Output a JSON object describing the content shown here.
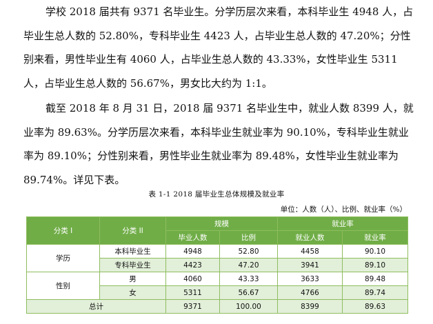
{
  "paragraphs": [
    "学校 2018 届共有 9371 名毕业生。分学历层次来看，本科毕业生 4948 人，占毕业生总人数的 52.80%，专科毕业生 4423 人，占毕业生总人数的 47.20%；分性别来看，男性毕业生有 4060 人，占毕业生总人数的 43.33%，女性毕业生 5311 人，占毕业生总人数的 56.67%，男女比大约为 1:1。",
    "截至 2018 年 8 月 31 日，2018 届 9371 名毕业生中，就业人数 8399 人，就业率为 89.63%。分学历层次来看，本科毕业生就业率为 90.10%，专科毕业生就业率为 89.10%；分性别来看，男性毕业生就业率为 89.48%，女性毕业生就业率为 89.74%。详见下表。"
  ],
  "table": {
    "caption": "表 1-1   2018 届毕业生总体规模及就业率",
    "unit": "单位：人数（人）、比例、就业率（%）",
    "headers": {
      "cat1": "分类 I",
      "cat2": "分类 II",
      "scale": "规模",
      "employment": "就业率",
      "graduates": "毕业人数",
      "ratio": "比例",
      "employed": "就业人数",
      "rate": "就业率"
    },
    "groups": {
      "education": "学历",
      "gender": "性别"
    },
    "rows": [
      {
        "sub": "本科毕业生",
        "graduates": "4948",
        "ratio": "52.80",
        "employed": "4458",
        "rate": "90.10"
      },
      {
        "sub": "专科毕业生",
        "graduates": "4423",
        "ratio": "47.20",
        "employed": "3941",
        "rate": "89.10"
      },
      {
        "sub": "男",
        "graduates": "4060",
        "ratio": "43.33",
        "employed": "3633",
        "rate": "89.48"
      },
      {
        "sub": "女",
        "graduates": "5311",
        "ratio": "56.67",
        "employed": "4766",
        "rate": "89.74"
      }
    ],
    "total": {
      "label": "总计",
      "graduates": "9371",
      "ratio": "100.00",
      "employed": "8399",
      "rate": "89.63"
    }
  },
  "colors": {
    "header_bg": "#70ad47",
    "alt_row_bg": "#e2efd9",
    "border": "#8ebd5e"
  }
}
